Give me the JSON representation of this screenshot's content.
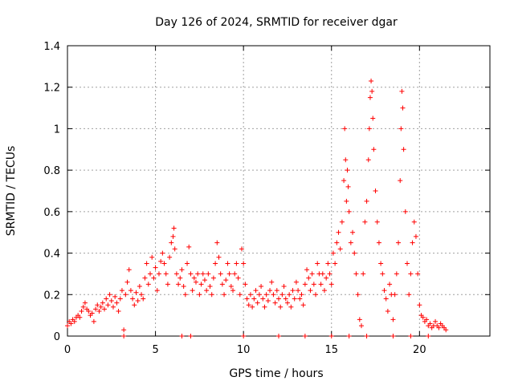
{
  "chart_data": {
    "type": "scatter",
    "title": "Day 126 of 2024, SRMTID for receiver dgar",
    "xlabel": "GPS time / hours",
    "ylabel": "SRMTID / TECUs",
    "xlim": [
      0,
      24
    ],
    "ylim": [
      0,
      1.4
    ],
    "xticks": [
      0,
      5,
      10,
      15,
      20
    ],
    "yticks": [
      0,
      0.2,
      0.4,
      0.6,
      0.8,
      1,
      1.2,
      1.4
    ],
    "xtick_labels": [
      "0",
      "5",
      "10",
      "15",
      "20"
    ],
    "ytick_labels": [
      "0",
      "0.2",
      "0.4",
      "0.6",
      "0.8",
      "1",
      "1.2",
      "1.4"
    ],
    "grid": true,
    "marker": "+",
    "color": "#ff0000",
    "series": [
      {
        "name": "SRMTID",
        "points": [
          [
            0.0,
            0.05
          ],
          [
            0.1,
            0.07
          ],
          [
            0.2,
            0.06
          ],
          [
            0.3,
            0.08
          ],
          [
            0.4,
            0.07
          ],
          [
            0.5,
            0.09
          ],
          [
            0.6,
            0.1
          ],
          [
            0.7,
            0.09
          ],
          [
            0.8,
            0.12
          ],
          [
            0.9,
            0.14
          ],
          [
            1.0,
            0.16
          ],
          [
            1.1,
            0.13
          ],
          [
            1.2,
            0.12
          ],
          [
            1.3,
            0.1
          ],
          [
            1.4,
            0.11
          ],
          [
            1.5,
            0.07
          ],
          [
            1.6,
            0.13
          ],
          [
            1.7,
            0.15
          ],
          [
            1.8,
            0.12
          ],
          [
            1.9,
            0.14
          ],
          [
            2.0,
            0.16
          ],
          [
            2.1,
            0.13
          ],
          [
            2.2,
            0.18
          ],
          [
            2.3,
            0.15
          ],
          [
            2.4,
            0.2
          ],
          [
            2.5,
            0.17
          ],
          [
            2.6,
            0.14
          ],
          [
            2.7,
            0.19
          ],
          [
            2.8,
            0.16
          ],
          [
            2.9,
            0.12
          ],
          [
            3.0,
            0.18
          ],
          [
            3.1,
            0.22
          ],
          [
            3.2,
            0.03
          ],
          [
            3.3,
            0.2
          ],
          [
            3.4,
            0.26
          ],
          [
            3.5,
            0.32
          ],
          [
            3.6,
            0.22
          ],
          [
            3.7,
            0.18
          ],
          [
            3.8,
            0.15
          ],
          [
            3.9,
            0.21
          ],
          [
            4.0,
            0.17
          ],
          [
            4.1,
            0.24
          ],
          [
            4.2,
            0.2
          ],
          [
            4.3,
            0.18
          ],
          [
            4.4,
            0.28
          ],
          [
            4.5,
            0.35
          ],
          [
            4.6,
            0.25
          ],
          [
            4.7,
            0.3
          ],
          [
            4.8,
            0.38
          ],
          [
            4.9,
            0.28
          ],
          [
            5.0,
            0.33
          ],
          [
            5.1,
            0.22
          ],
          [
            5.2,
            0.3
          ],
          [
            5.3,
            0.36
          ],
          [
            5.4,
            0.4
          ],
          [
            5.5,
            0.35
          ],
          [
            5.6,
            0.3
          ],
          [
            5.7,
            0.25
          ],
          [
            5.8,
            0.38
          ],
          [
            5.9,
            0.45
          ],
          [
            6.0,
            0.48
          ],
          [
            6.05,
            0.52
          ],
          [
            6.1,
            0.42
          ],
          [
            6.2,
            0.3
          ],
          [
            6.3,
            0.25
          ],
          [
            6.4,
            0.28
          ],
          [
            6.5,
            0.32
          ],
          [
            6.6,
            0.24
          ],
          [
            6.7,
            0.2
          ],
          [
            6.8,
            0.35
          ],
          [
            6.9,
            0.43
          ],
          [
            7.0,
            0.3
          ],
          [
            7.1,
            0.22
          ],
          [
            7.2,
            0.28
          ],
          [
            7.3,
            0.26
          ],
          [
            7.4,
            0.3
          ],
          [
            7.5,
            0.2
          ],
          [
            7.6,
            0.25
          ],
          [
            7.7,
            0.3
          ],
          [
            7.8,
            0.27
          ],
          [
            7.9,
            0.22
          ],
          [
            8.0,
            0.3
          ],
          [
            8.1,
            0.24
          ],
          [
            8.2,
            0.2
          ],
          [
            8.3,
            0.28
          ],
          [
            8.4,
            0.35
          ],
          [
            8.5,
            0.45
          ],
          [
            8.6,
            0.38
          ],
          [
            8.7,
            0.3
          ],
          [
            8.8,
            0.25
          ],
          [
            8.9,
            0.2
          ],
          [
            9.0,
            0.27
          ],
          [
            9.1,
            0.35
          ],
          [
            9.2,
            0.3
          ],
          [
            9.3,
            0.24
          ],
          [
            9.4,
            0.22
          ],
          [
            9.5,
            0.3
          ],
          [
            9.6,
            0.35
          ],
          [
            9.7,
            0.28
          ],
          [
            9.8,
            0.2
          ],
          [
            9.9,
            0.42
          ],
          [
            10.0,
            0.35
          ],
          [
            10.1,
            0.25
          ],
          [
            10.2,
            0.18
          ],
          [
            10.3,
            0.15
          ],
          [
            10.4,
            0.2
          ],
          [
            10.5,
            0.14
          ],
          [
            10.6,
            0.18
          ],
          [
            10.7,
            0.22
          ],
          [
            10.8,
            0.16
          ],
          [
            10.9,
            0.2
          ],
          [
            11.0,
            0.24
          ],
          [
            11.1,
            0.18
          ],
          [
            11.2,
            0.14
          ],
          [
            11.3,
            0.2
          ],
          [
            11.4,
            0.17
          ],
          [
            11.5,
            0.22
          ],
          [
            11.6,
            0.26
          ],
          [
            11.7,
            0.2
          ],
          [
            11.8,
            0.16
          ],
          [
            11.9,
            0.22
          ],
          [
            12.0,
            0.18
          ],
          [
            12.1,
            0.14
          ],
          [
            12.2,
            0.2
          ],
          [
            12.3,
            0.24
          ],
          [
            12.4,
            0.18
          ],
          [
            12.5,
            0.16
          ],
          [
            12.6,
            0.2
          ],
          [
            12.7,
            0.14
          ],
          [
            12.8,
            0.22
          ],
          [
            12.9,
            0.18
          ],
          [
            13.0,
            0.26
          ],
          [
            13.1,
            0.22
          ],
          [
            13.2,
            0.18
          ],
          [
            13.3,
            0.2
          ],
          [
            13.4,
            0.15
          ],
          [
            13.5,
            0.25
          ],
          [
            13.6,
            0.32
          ],
          [
            13.7,
            0.28
          ],
          [
            13.8,
            0.22
          ],
          [
            13.9,
            0.3
          ],
          [
            14.0,
            0.25
          ],
          [
            14.1,
            0.2
          ],
          [
            14.2,
            0.35
          ],
          [
            14.3,
            0.3
          ],
          [
            14.4,
            0.25
          ],
          [
            14.5,
            0.3
          ],
          [
            14.6,
            0.22
          ],
          [
            14.7,
            0.28
          ],
          [
            14.8,
            0.35
          ],
          [
            14.9,
            0.3
          ],
          [
            15.0,
            0.25
          ],
          [
            15.1,
            0.4
          ],
          [
            15.2,
            0.35
          ],
          [
            15.3,
            0.45
          ],
          [
            15.4,
            0.5
          ],
          [
            15.5,
            0.42
          ],
          [
            15.6,
            0.55
          ],
          [
            15.7,
            0.75
          ],
          [
            15.75,
            1.0
          ],
          [
            15.8,
            0.85
          ],
          [
            15.85,
            0.65
          ],
          [
            15.9,
            0.8
          ],
          [
            15.95,
            0.72
          ],
          [
            16.0,
            0.6
          ],
          [
            16.1,
            0.45
          ],
          [
            16.2,
            0.5
          ],
          [
            16.3,
            0.4
          ],
          [
            16.4,
            0.3
          ],
          [
            16.5,
            0.2
          ],
          [
            16.6,
            0.08
          ],
          [
            16.7,
            0.05
          ],
          [
            16.8,
            0.3
          ],
          [
            16.9,
            0.55
          ],
          [
            17.0,
            0.65
          ],
          [
            17.1,
            0.85
          ],
          [
            17.15,
            1.0
          ],
          [
            17.2,
            1.15
          ],
          [
            17.25,
            1.23
          ],
          [
            17.3,
            1.18
          ],
          [
            17.35,
            1.05
          ],
          [
            17.4,
            0.9
          ],
          [
            17.5,
            0.7
          ],
          [
            17.6,
            0.55
          ],
          [
            17.7,
            0.45
          ],
          [
            17.8,
            0.35
          ],
          [
            17.9,
            0.3
          ],
          [
            18.0,
            0.22
          ],
          [
            18.1,
            0.18
          ],
          [
            18.2,
            0.12
          ],
          [
            18.3,
            0.25
          ],
          [
            18.4,
            0.2
          ],
          [
            18.5,
            0.08
          ],
          [
            18.6,
            0.2
          ],
          [
            18.7,
            0.3
          ],
          [
            18.8,
            0.45
          ],
          [
            18.9,
            0.75
          ],
          [
            18.95,
            1.0
          ],
          [
            19.0,
            1.18
          ],
          [
            19.05,
            1.1
          ],
          [
            19.1,
            0.9
          ],
          [
            19.2,
            0.6
          ],
          [
            19.3,
            0.35
          ],
          [
            19.4,
            0.2
          ],
          [
            19.5,
            0.3
          ],
          [
            19.6,
            0.45
          ],
          [
            19.7,
            0.55
          ],
          [
            19.8,
            0.48
          ],
          [
            19.9,
            0.3
          ],
          [
            20.0,
            0.15
          ],
          [
            20.1,
            0.1
          ],
          [
            20.2,
            0.09
          ],
          [
            20.3,
            0.07
          ],
          [
            20.4,
            0.08
          ],
          [
            20.5,
            0.05
          ],
          [
            20.6,
            0.06
          ],
          [
            20.7,
            0.04
          ],
          [
            20.8,
            0.05
          ],
          [
            20.9,
            0.07
          ],
          [
            21.0,
            0.05
          ],
          [
            21.1,
            0.04
          ],
          [
            21.2,
            0.06
          ],
          [
            21.3,
            0.05
          ],
          [
            21.4,
            0.04
          ],
          [
            21.5,
            0.03
          ],
          [
            3.2,
            0.0
          ],
          [
            6.5,
            0.0
          ],
          [
            7.0,
            0.0
          ],
          [
            10.0,
            0.0
          ],
          [
            12.0,
            0.0
          ],
          [
            13.5,
            0.0
          ],
          [
            15.0,
            0.0
          ],
          [
            16.0,
            0.0
          ],
          [
            17.0,
            0.0
          ],
          [
            18.5,
            0.0
          ],
          [
            19.5,
            0.0
          ],
          [
            20.5,
            0.0
          ]
        ]
      }
    ]
  }
}
